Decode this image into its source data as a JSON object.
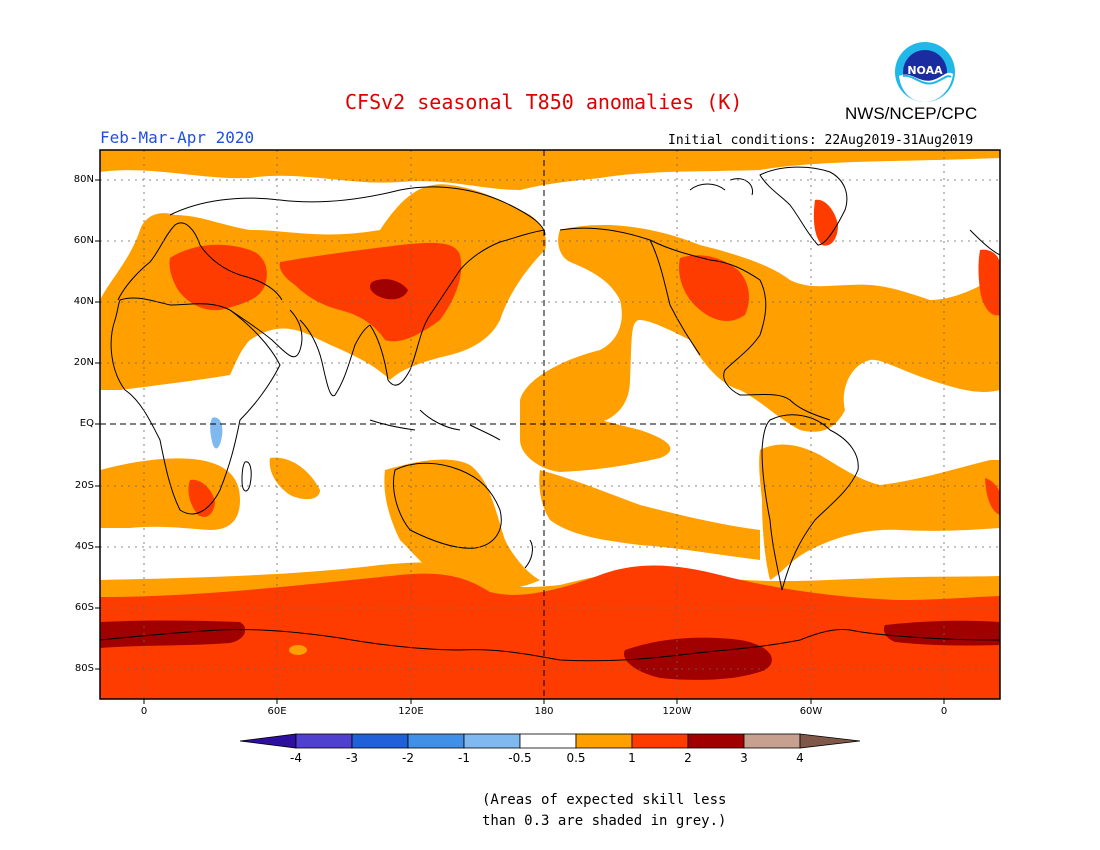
{
  "header": {
    "title": "CFSv2 seasonal T850 anomalies (K)",
    "agency": "NWS/NCEP/CPC",
    "period": "Feb-Mar-Apr 2020",
    "initial_conditions": "Initial conditions: 22Aug2019-31Aug2019",
    "logo_text": "NOAA"
  },
  "axes": {
    "lat_labels": [
      "80N",
      "60N",
      "40N",
      "20N",
      "EQ",
      "20S",
      "40S",
      "60S",
      "80S"
    ],
    "lon_labels": [
      "0",
      "60E",
      "120E",
      "180",
      "120W",
      "60W",
      "0"
    ]
  },
  "colorbar": {
    "labels": [
      "-4",
      "-3",
      "-2",
      "-1",
      "-0.5",
      "0.5",
      "1",
      "2",
      "3",
      "4"
    ],
    "colors": [
      "#2e10a0",
      "#5040d0",
      "#2060d8",
      "#4090e8",
      "#80b8f0",
      "#ffffff",
      "#ffa000",
      "#ff3c00",
      "#a00000",
      "#c8a090",
      "#805848"
    ]
  },
  "legend_colors": {
    "land_outline": "#000000",
    "above_0_5": "#ffa000",
    "above_1": "#ff3c00",
    "above_2": "#a00000",
    "below_minus_0_5": "#80b8f0"
  },
  "footnote": {
    "line1": "(Areas of expected skill less",
    "line2": "than 0.3 are shaded in grey.)"
  }
}
